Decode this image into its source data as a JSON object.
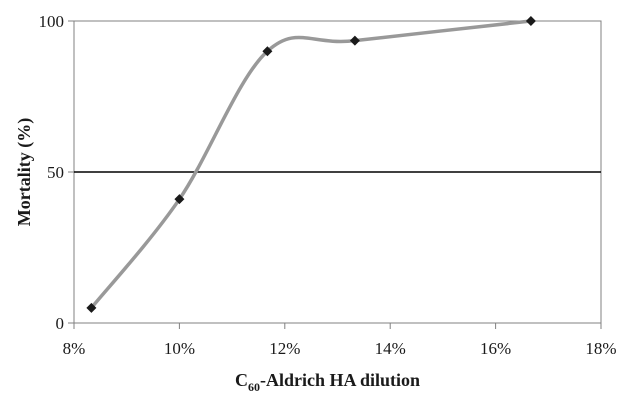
{
  "chart_data": {
    "type": "line",
    "title": "",
    "xlabel_prefix": "C",
    "xlabel_sub": "60",
    "xlabel_rest": "-Aldrich HA dilution",
    "ylabel": "Mortality (%)",
    "xlim": [
      8,
      18
    ],
    "ylim": [
      0,
      100
    ],
    "x_ticks": [
      8,
      10,
      12,
      14,
      16,
      18
    ],
    "x_tick_labels": [
      "8%",
      "10%",
      "12%",
      "14%",
      "16%",
      "18%"
    ],
    "y_ticks": [
      0,
      50,
      100
    ],
    "y_tick_labels": [
      "0",
      "50",
      "100"
    ],
    "reference_line": 50,
    "smoothed": true,
    "grid": false,
    "legend": "none",
    "series": [
      {
        "x": [
          8.33,
          10.0,
          11.67,
          13.33,
          16.67
        ],
        "y": [
          5,
          41,
          90,
          93.5,
          100
        ]
      }
    ],
    "colors": {
      "line": "#999999",
      "marker": "#1a1a1a",
      "axis": "#808080",
      "reference": "#000000"
    }
  }
}
